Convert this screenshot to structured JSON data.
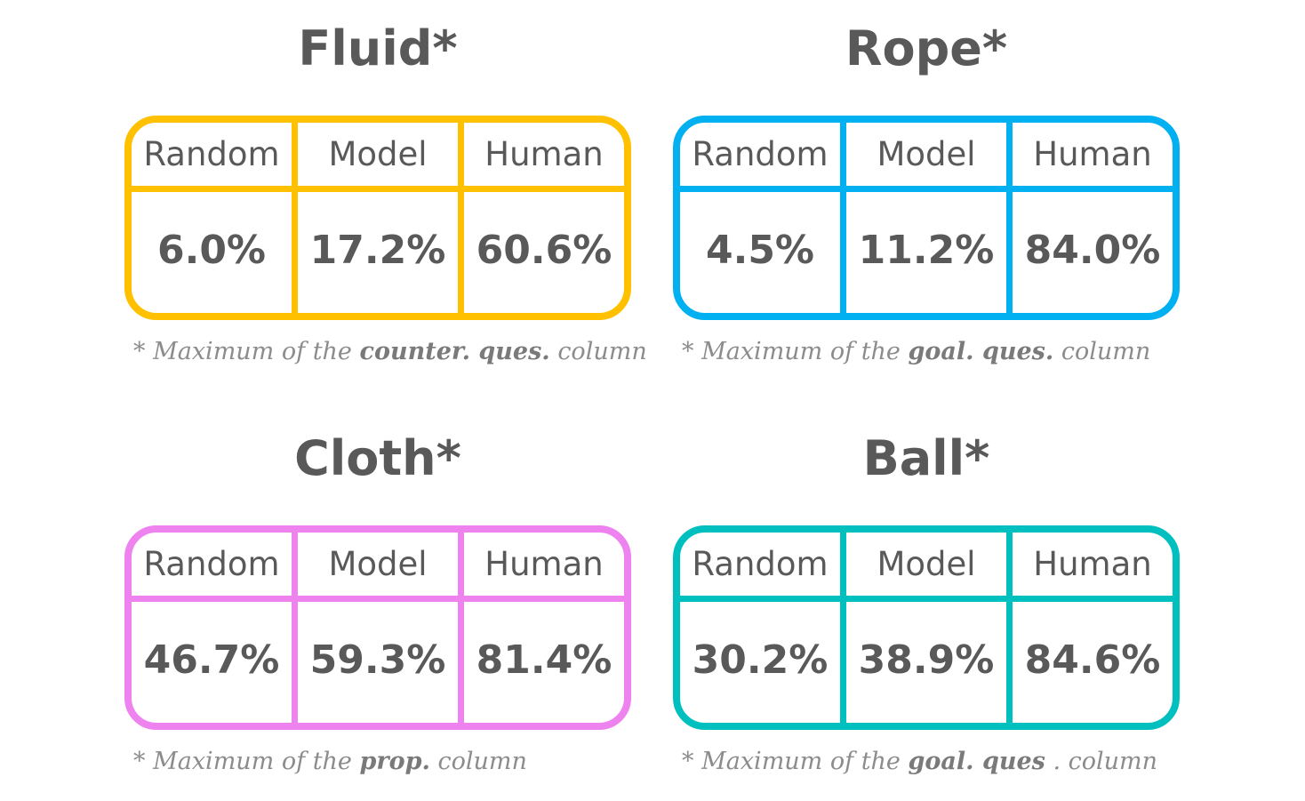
{
  "columns": [
    "Random",
    "Model",
    "Human"
  ],
  "panels": [
    {
      "title": "Fluid*",
      "color": "#FFC000",
      "values": [
        "6.0%",
        "17.2%",
        "60.6%"
      ],
      "footnote": {
        "prefix": "* Maximum of the",
        "emphasis": "counter. ques.",
        "suffix": "column"
      }
    },
    {
      "title": "Rope*",
      "color": "#00B0F0",
      "values": [
        "4.5%",
        "11.2%",
        "84.0%"
      ],
      "footnote": {
        "prefix": "* Maximum of the",
        "emphasis": "goal. ques.",
        "suffix": "column"
      }
    },
    {
      "title": "Cloth*",
      "color": "#EE82EE",
      "values": [
        "46.7%",
        "59.3%",
        "81.4%"
      ],
      "footnote": {
        "prefix": "* Maximum of the",
        "emphasis": "prop.",
        "suffix": "column"
      }
    },
    {
      "title": "Ball*",
      "color": "#00BFBF",
      "values": [
        "30.2%",
        "38.9%",
        "84.6%"
      ],
      "footnote": {
        "prefix": "* Maximum of the",
        "emphasis": "goal. ques",
        "suffix": ". column"
      }
    }
  ]
}
